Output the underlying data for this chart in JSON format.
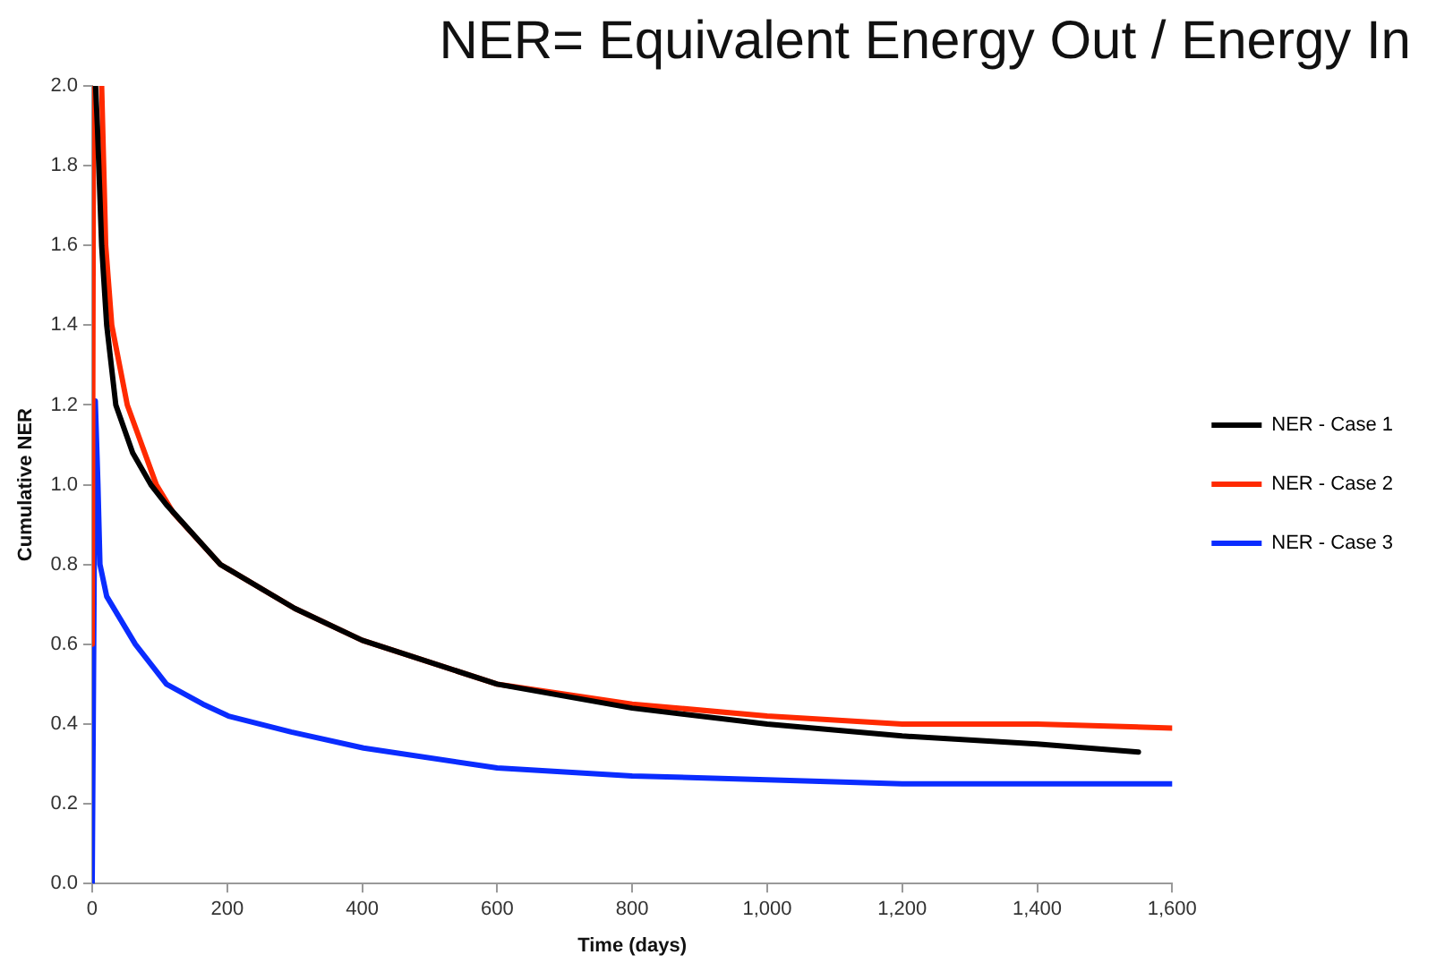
{
  "chart_data": {
    "type": "line",
    "title": "NER= Equivalent Energy Out / Energy In",
    "xlabel": "Time (days)",
    "ylabel": "Cumulative NER",
    "xlim": [
      0,
      1600
    ],
    "xticks": [
      0,
      200,
      400,
      600,
      800,
      {
        "value": 1000,
        "label": "1,000"
      },
      {
        "value": 1200,
        "label": "1,200"
      },
      {
        "value": 1400,
        "label": "1,400"
      },
      {
        "value": 1600,
        "label": "1,600"
      }
    ],
    "ylim": [
      0,
      2
    ],
    "yticks": [
      {
        "value": 0,
        "label": "0.0"
      },
      0.2,
      0.4,
      0.6,
      0.8,
      {
        "value": 1,
        "label": "1.0"
      },
      1.2,
      1.4,
      1.6,
      1.8,
      {
        "value": 2,
        "label": "2.0"
      }
    ],
    "grid": false,
    "legend": "right",
    "marker": "none",
    "line_style": "solid",
    "series": [
      {
        "name": "NER - Case 1",
        "color": "#000000",
        "x": [
          5,
          7.7,
          14,
          21.5,
          35,
          60,
          87,
          110,
          190,
          300,
          400,
          600,
          800,
          1000,
          1200,
          1400,
          1550
        ],
        "values": [
          2.0,
          1.9,
          1.6,
          1.4,
          1.2,
          1.08,
          1.0,
          0.95,
          0.8,
          0.69,
          0.61,
          0.5,
          0.44,
          0.4,
          0.37,
          0.35,
          0.33
        ]
      },
      {
        "name": "NER - Case 2",
        "color": "#ff2a00",
        "x": [
          0,
          2,
          8,
          14,
          20,
          29,
          52,
          95,
          120,
          190,
          300,
          400,
          600,
          800,
          1000,
          1200,
          1400,
          1600
        ],
        "values": [
          0.6,
          2.0,
          null,
          2.0,
          1.6,
          1.4,
          1.2,
          1.0,
          0.93,
          0.8,
          0.69,
          0.61,
          0.5,
          0.45,
          0.42,
          0.4,
          0.4,
          0.39
        ]
      },
      {
        "name": "NER - Case 3",
        "color": "#0a2cff",
        "x": [
          0,
          4.6,
          8.5,
          11.5,
          21.5,
          64,
          110,
          164,
          202,
          295,
          402,
          600,
          800,
          1000,
          1200,
          1400,
          1600
        ],
        "values": [
          0,
          1.21,
          1.0,
          0.8,
          0.72,
          0.6,
          0.5,
          0.45,
          0.42,
          0.38,
          0.34,
          0.29,
          0.27,
          0.26,
          0.25,
          0.25,
          0.25
        ]
      }
    ]
  }
}
